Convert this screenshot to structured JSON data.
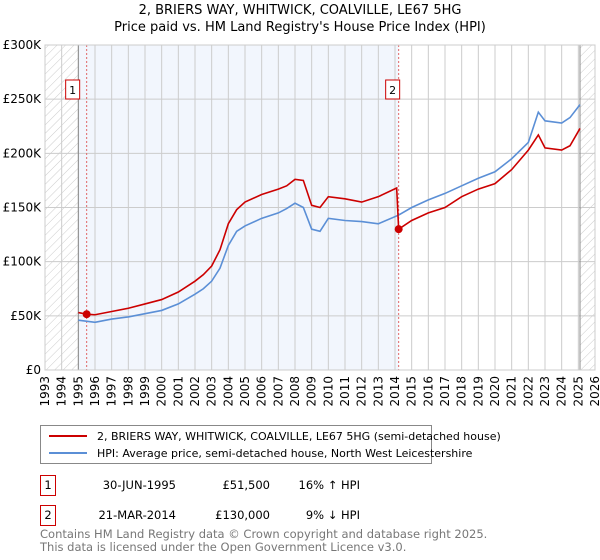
{
  "chart_data": {
    "type": "line",
    "title": "2, BRIERS WAY, WHITWICK, COALVILLE, LE67 5HG",
    "subtitle": "Price paid vs. HM Land Registry's House Price Index (HPI)",
    "xlim": [
      1993,
      2026
    ],
    "ylim": [
      0,
      300000
    ],
    "yticks": [
      {
        "v": 0,
        "label": "£0"
      },
      {
        "v": 50000,
        "label": "£50K"
      },
      {
        "v": 100000,
        "label": "£100K"
      },
      {
        "v": 150000,
        "label": "£150K"
      },
      {
        "v": 200000,
        "label": "£200K"
      },
      {
        "v": 250000,
        "label": "£250K"
      },
      {
        "v": 300000,
        "label": "£300K"
      }
    ],
    "xticks": [
      "1993",
      "1994",
      "1995",
      "1996",
      "1997",
      "1998",
      "1999",
      "2000",
      "2001",
      "2002",
      "2003",
      "2004",
      "2005",
      "2006",
      "2007",
      "2008",
      "2009",
      "2010",
      "2011",
      "2012",
      "2013",
      "2014",
      "2015",
      "2016",
      "2017",
      "2018",
      "2019",
      "2020",
      "2021",
      "2022",
      "2023",
      "2024",
      "2025",
      "2026"
    ],
    "grid": true,
    "series": [
      {
        "name": "2, BRIERS WAY, WHITWICK, COALVILLE, LE67 5HG (semi-detached house)",
        "color": "#cc0000",
        "x": [
          1995.0,
          1995.5,
          1996,
          1997,
          1998,
          1999,
          2000,
          2001,
          2002,
          2002.5,
          2003,
          2003.5,
          2004,
          2004.5,
          2005,
          2006,
          2007,
          2007.5,
          2008,
          2008.5,
          2009,
          2009.5,
          2010,
          2011,
          2012,
          2013,
          2014.1,
          2014.22,
          2015,
          2016,
          2017,
          2018,
          2019,
          2020,
          2021,
          2022,
          2022.6,
          2023,
          2024,
          2024.5,
          2025.1
        ],
        "y": [
          53000,
          51500,
          51000,
          54000,
          57000,
          61000,
          65000,
          72000,
          82000,
          88000,
          96000,
          111000,
          135000,
          148000,
          155000,
          162000,
          167000,
          170000,
          176000,
          175000,
          152000,
          150000,
          160000,
          158000,
          155000,
          160000,
          168000,
          130000,
          138000,
          145000,
          150000,
          160000,
          167000,
          172000,
          185000,
          203000,
          217000,
          205000,
          203000,
          207000,
          223000
        ]
      },
      {
        "name": "HPI: Average price, semi-detached house, North West Leicestershire",
        "color": "#5b8fd6",
        "x": [
          1995.0,
          1996,
          1997,
          1998,
          1999,
          2000,
          2001,
          2002,
          2002.5,
          2003,
          2003.5,
          2004,
          2004.5,
          2005,
          2006,
          2007,
          2007.5,
          2008,
          2008.5,
          2009,
          2009.5,
          2010,
          2011,
          2012,
          2013,
          2014.22,
          2015,
          2016,
          2017,
          2018,
          2019,
          2020,
          2021,
          2022,
          2022.6,
          2023,
          2024,
          2024.5,
          2025.1
        ],
        "y": [
          46000,
          44000,
          47000,
          49000,
          52000,
          55000,
          61000,
          70000,
          75000,
          82000,
          94000,
          115000,
          128000,
          133000,
          140000,
          145000,
          149000,
          154000,
          150000,
          130000,
          128000,
          140000,
          138000,
          137000,
          135000,
          143000,
          150000,
          157000,
          163000,
          170000,
          177000,
          183000,
          195000,
          210000,
          238000,
          230000,
          228000,
          233000,
          245000
        ]
      }
    ],
    "sales": [
      {
        "label": "1",
        "x": 1995.5,
        "y": 51500
      },
      {
        "label": "2",
        "x": 2014.22,
        "y": 130000
      }
    ],
    "legend_placement": "below"
  },
  "table": [
    {
      "num": "1",
      "date": "30-JUN-1995",
      "price": "£51,500",
      "hpi": "16% ↑ HPI"
    },
    {
      "num": "2",
      "date": "21-MAR-2014",
      "price": "£130,000",
      "hpi": "9% ↓ HPI"
    }
  ],
  "footer": [
    "Contains HM Land Registry data © Crown copyright and database right 2025.",
    "This data is licensed under the Open Government Licence v3.0."
  ]
}
